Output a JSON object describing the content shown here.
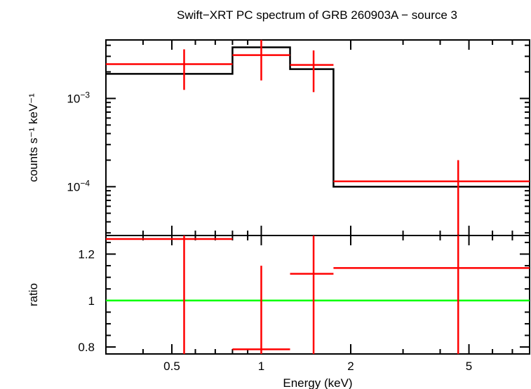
{
  "chart_data": {
    "type": "scatter",
    "title": "Swift−XRT PC spectrum of GRB 260903A − source 3",
    "xlabel": "Energy (keV)",
    "xscale": "log",
    "xlim": [
      0.3,
      8.0
    ],
    "xticks": [
      {
        "value": 0.5,
        "label": "0.5"
      },
      {
        "value": 1,
        "label": "1"
      },
      {
        "value": 2,
        "label": "2"
      },
      {
        "value": 5,
        "label": "5"
      }
    ],
    "colors": {
      "data": "#ff0000",
      "model": "#000000",
      "unity": "#00ff00"
    },
    "panels": [
      {
        "name": "spectrum",
        "ylabel": "counts s⁻¹ keV⁻¹",
        "yscale": "log",
        "ylim": [
          2.8e-05,
          0.0046
        ],
        "yticks": [
          {
            "value": 0.001,
            "base": "10",
            "exp": "−3"
          },
          {
            "value": 0.0001,
            "base": "10",
            "exp": "−4"
          }
        ],
        "data": [
          {
            "x": 0.55,
            "xlo": 0.3,
            "xhi": 0.8,
            "y": 0.00245,
            "ylo": 0.00125,
            "yhi": 0.0036
          },
          {
            "x": 1.0,
            "xlo": 0.8,
            "xhi": 1.25,
            "y": 0.0031,
            "ylo": 0.0016,
            "yhi": 0.0046
          },
          {
            "x": 1.5,
            "xlo": 1.25,
            "xhi": 1.75,
            "y": 0.0024,
            "ylo": 0.00118,
            "yhi": 0.0035
          },
          {
            "x": 4.6,
            "xlo": 1.75,
            "xhi": 8.0,
            "y": 0.000115,
            "ylo": 2.8e-05,
            "yhi": 0.0002
          }
        ],
        "model": [
          {
            "xlo": 0.3,
            "xhi": 0.8,
            "y": 0.0019
          },
          {
            "xlo": 0.8,
            "xhi": 1.25,
            "y": 0.0038
          },
          {
            "xlo": 1.25,
            "xhi": 1.75,
            "y": 0.00215
          },
          {
            "xlo": 1.75,
            "xhi": 8.0,
            "y": 0.0001
          }
        ]
      },
      {
        "name": "ratio",
        "ylabel": "ratio",
        "yscale": "linear",
        "ylim": [
          0.77,
          1.28
        ],
        "yticks": [
          {
            "value": 0.8,
            "label": "0.8"
          },
          {
            "value": 1.0,
            "label": "1"
          },
          {
            "value": 1.2,
            "label": "1.2"
          }
        ],
        "unity": 1.0,
        "data": [
          {
            "x": 0.55,
            "xlo": 0.3,
            "xhi": 0.8,
            "y": 1.265,
            "ylo": 0.77,
            "yhi": 1.28
          },
          {
            "x": 1.0,
            "xlo": 0.8,
            "xhi": 1.25,
            "y": 0.79,
            "ylo": 0.77,
            "yhi": 1.15
          },
          {
            "x": 1.5,
            "xlo": 1.25,
            "xhi": 1.75,
            "y": 1.115,
            "ylo": 0.77,
            "yhi": 1.28
          },
          {
            "x": 4.6,
            "xlo": 1.75,
            "xhi": 8.0,
            "y": 1.14,
            "ylo": 0.77,
            "yhi": 1.28
          }
        ]
      }
    ]
  }
}
